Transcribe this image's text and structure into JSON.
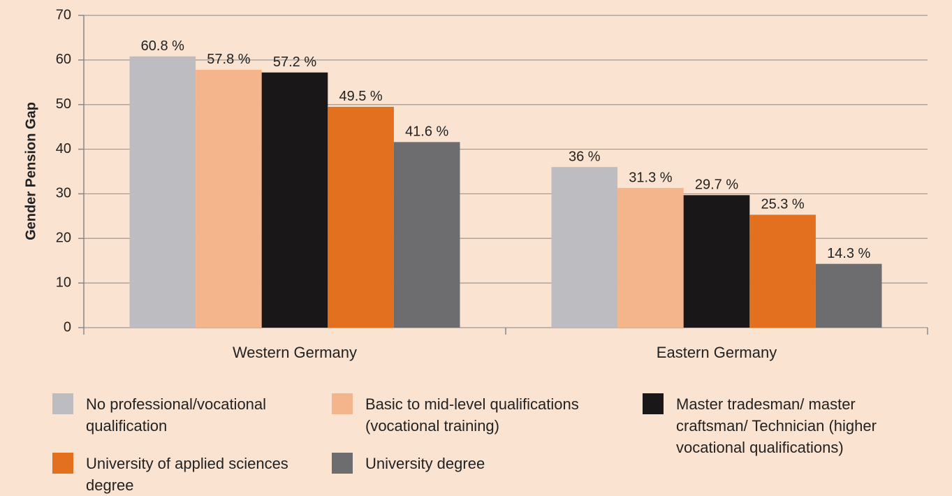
{
  "chart_data": {
    "type": "bar",
    "ylabel": "Gender Pension Gap",
    "categories": [
      "Western Germany",
      "Eastern Germany"
    ],
    "series": [
      {
        "name": "No professional/vocational qualification",
        "color": "#bdbcc1",
        "values": [
          60.8,
          36
        ],
        "value_labels": [
          "60.8 %",
          "36 %"
        ]
      },
      {
        "name": "Basic to mid-level qualifications (vocational training)",
        "color": "#f4b48c",
        "values": [
          57.8,
          31.3
        ],
        "value_labels": [
          "57.8 %",
          "31.3 %"
        ]
      },
      {
        "name": "Master tradesman/ master craftsman/ Technician (higher vocational qualifications)",
        "color": "#1a1718",
        "values": [
          57.2,
          29.7
        ],
        "value_labels": [
          "57.2 %",
          "29.7 %"
        ]
      },
      {
        "name": "University of applied sciences degree",
        "color": "#e2701f",
        "values": [
          49.5,
          25.3
        ],
        "value_labels": [
          "49.5 %",
          "25.3 %"
        ]
      },
      {
        "name": "University degree",
        "color": "#6d6c6e",
        "values": [
          41.6,
          14.3
        ],
        "value_labels": [
          "41.6 %",
          "14.3 %"
        ]
      }
    ],
    "ylim": [
      0,
      70
    ],
    "yticks": [
      0,
      10,
      20,
      30,
      40,
      50,
      60,
      70
    ],
    "grid": true
  }
}
